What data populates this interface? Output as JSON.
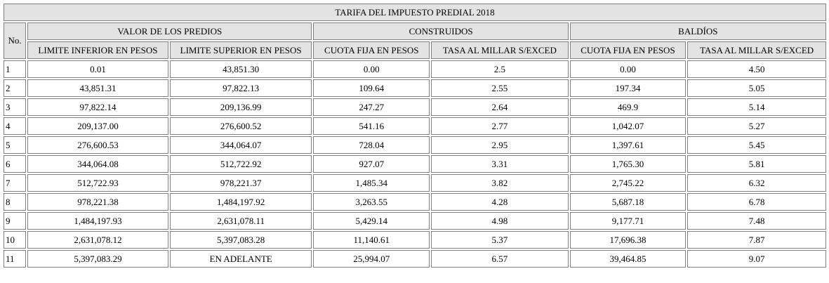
{
  "table": {
    "title": "TARIFA DEL IMPUESTO PREDIAL 2018",
    "no_header": "No.",
    "groups": [
      "VALOR DE LOS PREDIOS",
      "CONSTRUIDOS",
      "BALDÍOS"
    ],
    "columns": [
      "LIMITE INFERIOR EN PESOS",
      "LIMITE SUPERIOR EN PESOS",
      "CUOTA FIJA EN PESOS",
      "TASA AL MILLAR S/EXCED",
      "CUOTA FIJA EN PESOS",
      "TASA AL MILLAR S/EXCED"
    ],
    "rows": [
      [
        "1",
        "0.01",
        "43,851.30",
        "0.00",
        "2.5",
        "0.00",
        "4.50"
      ],
      [
        "2",
        "43,851.31",
        "97,822.13",
        "109.64",
        "2.55",
        "197.34",
        "5.05"
      ],
      [
        "3",
        "97,822.14",
        "209,136.99",
        "247.27",
        "2.64",
        "469.9",
        "5.14"
      ],
      [
        "4",
        "209,137.00",
        "276,600.52",
        "541.16",
        "2.77",
        "1,042.07",
        "5.27"
      ],
      [
        "5",
        "276,600.53",
        "344,064.07",
        "728.04",
        "2.95",
        "1,397.61",
        "5.45"
      ],
      [
        "6",
        "344,064.08",
        "512,722.92",
        "927.07",
        "3.31",
        "1,765.30",
        "5.81"
      ],
      [
        "7",
        "512,722.93",
        "978,221.37",
        "1,485.34",
        "3.82",
        "2,745.22",
        "6.32"
      ],
      [
        "8",
        "978,221.38",
        "1,484,197.92",
        "3,263.55",
        "4.28",
        "5,687.18",
        "6.78"
      ],
      [
        "9",
        "1,484,197.93",
        "2,631,078.11",
        "5,429.14",
        "4.98",
        "9,177.71",
        "7.48"
      ],
      [
        "10",
        "2,631,078.12",
        "5,397,083.28",
        "11,140.61",
        "5.37",
        "17,696.38",
        "7.87"
      ],
      [
        "11",
        "5,397,083.29",
        "EN ADELANTE",
        "25,994.07",
        "6.57",
        "39,464.85",
        "9.07"
      ]
    ]
  }
}
